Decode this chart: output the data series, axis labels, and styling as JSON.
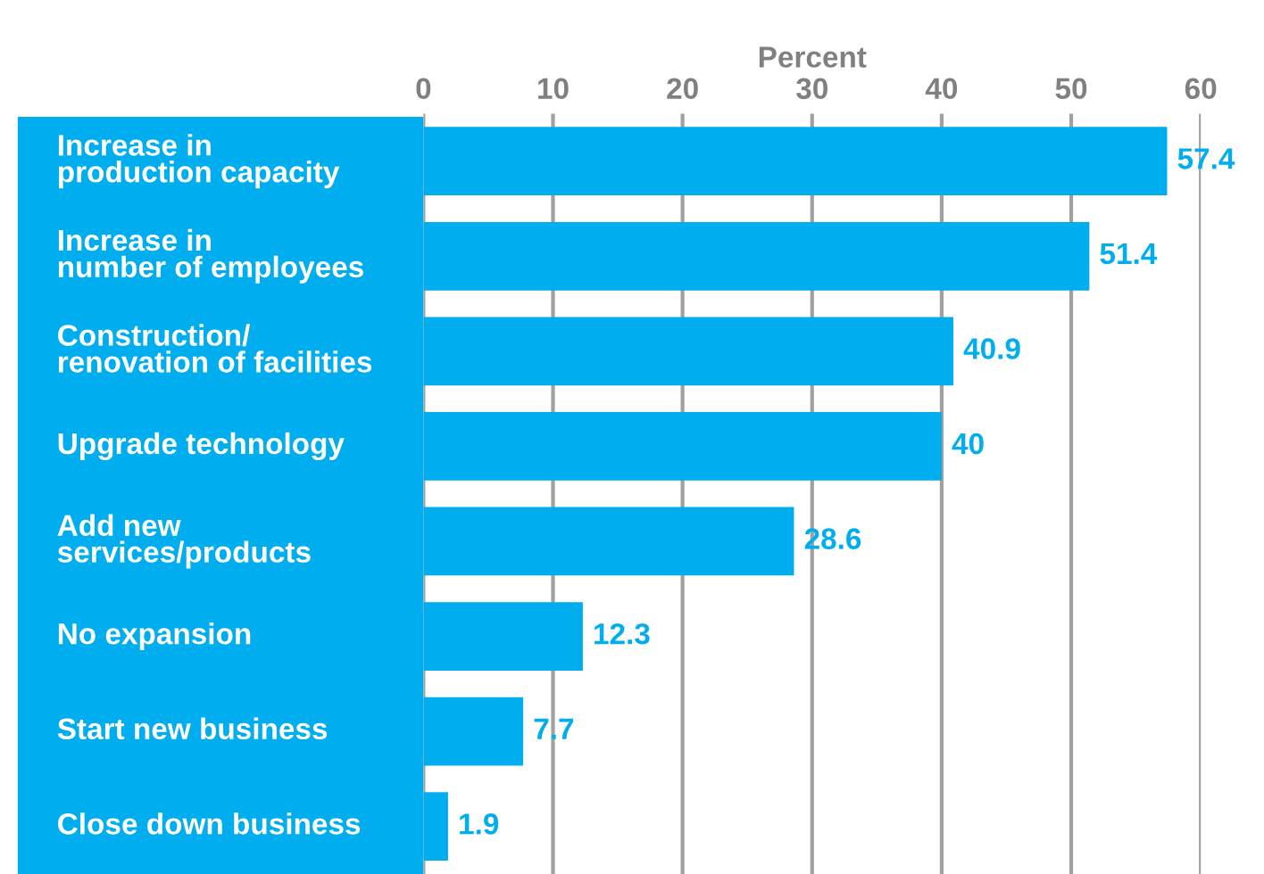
{
  "chart_data": {
    "type": "bar",
    "orientation": "horizontal",
    "xlabel": "Percent",
    "categories": [
      "Increase in\nproduction capacity",
      "Increase in\nnumber of employees",
      "Construction/\nrenovation of facilities",
      "Upgrade technology",
      "Add new\nservices/products",
      "No expansion",
      "Start new business",
      "Close down business"
    ],
    "values": [
      57.4,
      51.4,
      40.9,
      40,
      28.6,
      12.3,
      7.7,
      1.9
    ],
    "color": "#00aeef",
    "xlim": [
      0,
      60
    ],
    "xticks": [
      0,
      10,
      20,
      30,
      40,
      50,
      60
    ],
    "grid": "x",
    "data_labels": true
  }
}
